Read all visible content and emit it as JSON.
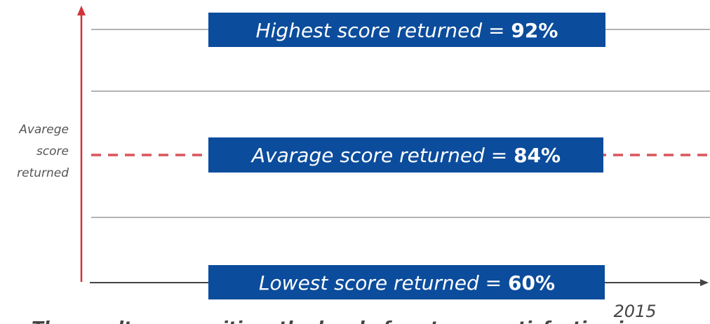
{
  "y_axis_label": [
    "Avarege",
    "score",
    "returned"
  ],
  "boxes": [
    {
      "text": "Highest score returned = ",
      "value": "92%"
    },
    {
      "text": "Avarage score returned = ",
      "value": "84%"
    },
    {
      "text": "Lowest score returned = ",
      "value": "60%"
    }
  ],
  "x_label": "2015",
  "footer": "The results are positive, the level of customer satisfaction is"
}
